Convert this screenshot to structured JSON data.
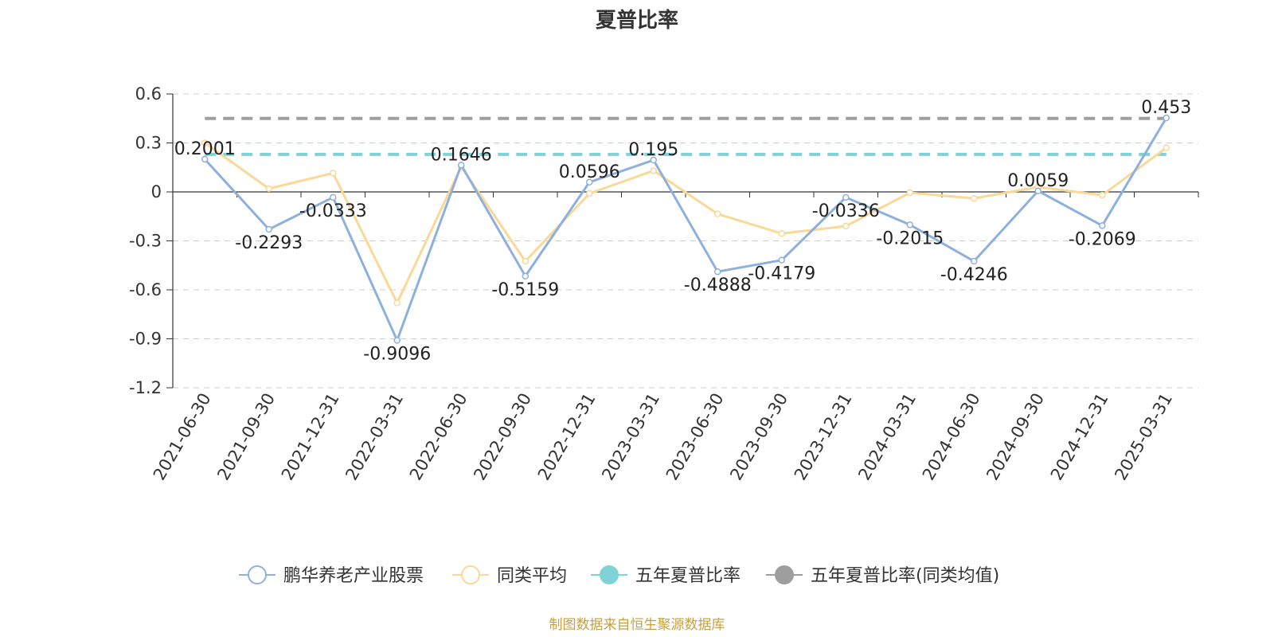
{
  "title": "夏普比率",
  "source": "制图数据来自恒生聚源数据库",
  "colors": {
    "fund": "#8eb0dc",
    "avg": "#f9d898",
    "five_year": "#7fd3d6",
    "five_year_avg": "#9e9e9e",
    "axis": "#333333",
    "grid": "#cccccc"
  },
  "chart_data": {
    "type": "line",
    "x": [
      "2021-06-30",
      "2021-09-30",
      "2021-12-31",
      "2022-03-31",
      "2022-06-30",
      "2022-09-30",
      "2022-12-31",
      "2023-03-31",
      "2023-06-30",
      "2023-09-30",
      "2023-12-31",
      "2024-03-31",
      "2024-06-30",
      "2024-09-30",
      "2024-12-31",
      "2025-03-31"
    ],
    "y_ticks": [
      "0.6",
      "0.3",
      "0",
      "-0.3",
      "-0.6",
      "-0.9",
      "-1.2"
    ],
    "ylim": [
      -1.2,
      0.6
    ],
    "grid": true,
    "legend_position": "bottom",
    "series": [
      {
        "name": "鹏华养老产业股票",
        "values": [
          0.2001,
          -0.2293,
          -0.0333,
          -0.9096,
          0.1646,
          -0.5159,
          0.0596,
          0.195,
          -0.4888,
          -0.4179,
          -0.0336,
          -0.2015,
          -0.4246,
          0.0059,
          -0.2069,
          0.453
        ],
        "labels": [
          "0.2001",
          "-0.2293",
          "-0.0333",
          "-0.9096",
          "0.1646",
          "-0.5159",
          "0.0596",
          "0.195",
          "-0.4888",
          "-0.4179",
          "-0.0336",
          "-0.2015",
          "-0.4246",
          "0.0059",
          "-0.2069",
          "0.453"
        ]
      },
      {
        "name": "同类平均",
        "values": [
          0.3,
          0.02,
          0.115,
          -0.68,
          0.155,
          -0.425,
          -0.01,
          0.13,
          -0.135,
          -0.255,
          -0.21,
          -0.005,
          -0.04,
          0.03,
          -0.02,
          0.27
        ]
      },
      {
        "name": "五年夏普比率",
        "constant": 0.23
      },
      {
        "name": "五年夏普比率(同类均值)",
        "constant": 0.45
      }
    ]
  }
}
